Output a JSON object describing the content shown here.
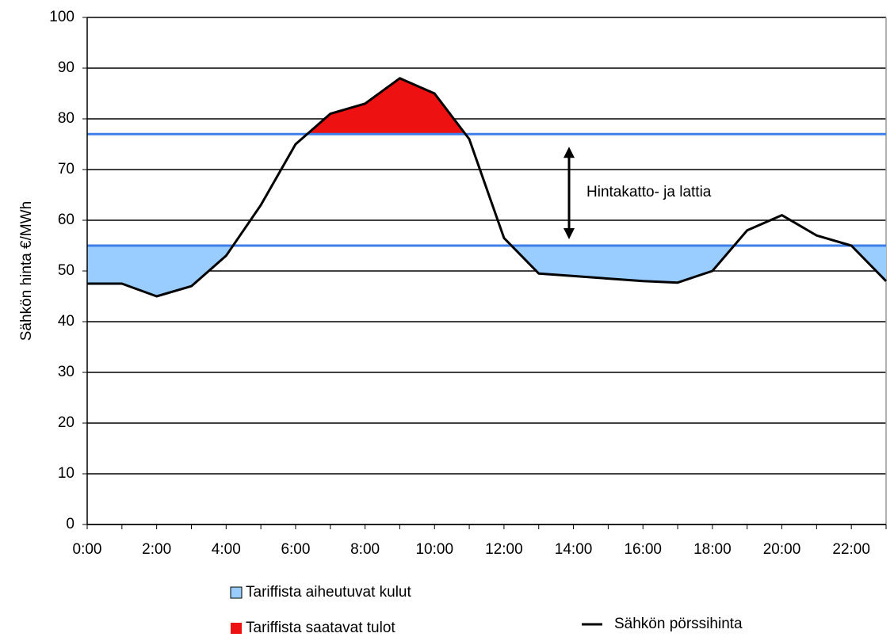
{
  "chart_data": {
    "type": "line",
    "y_label": "Sähkön hinta €/MWh",
    "categories": [
      "0:00",
      null,
      "2:00",
      null,
      "4:00",
      null,
      "6:00",
      null,
      "8:00",
      null,
      "10:00",
      null,
      "12:00",
      null,
      "14:00",
      null,
      "16:00",
      null,
      "18:00",
      null,
      "20:00",
      null,
      "22:00",
      null
    ],
    "series": [
      {
        "name": "Sähkön pörssihinta",
        "color": "#000000",
        "values": [
          47.5,
          47.5,
          45,
          47,
          53,
          63,
          75,
          81,
          83,
          88,
          85,
          76,
          56.5,
          49.5,
          49,
          48.5,
          48,
          47.7,
          50,
          58,
          61,
          57,
          55,
          48
        ]
      }
    ],
    "reference_lines": [
      {
        "value": 77,
        "color": "#3f7fe8"
      },
      {
        "value": 55,
        "color": "#3f7fe8"
      }
    ],
    "areas": [
      {
        "name": "Tariffista aiheutuvat kulut",
        "color": "#99ccff",
        "line": 1,
        "side": "below"
      },
      {
        "name": "Tariffista saatavat tulot",
        "color": "#ee1111",
        "line": 0,
        "side": "above"
      }
    ],
    "annotation": "Hintakatto- ja lattia",
    "ylim": [
      0,
      100
    ],
    "yticks": [
      0,
      10,
      20,
      30,
      40,
      50,
      60,
      70,
      80,
      90,
      100
    ],
    "grid": true
  }
}
